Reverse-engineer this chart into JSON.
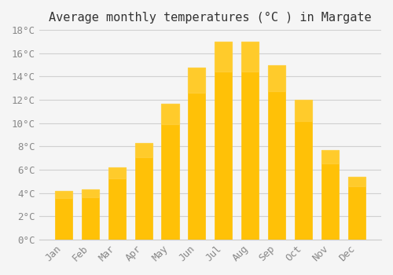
{
  "title": "Average monthly temperatures (°C ) in Margate",
  "months": [
    "Jan",
    "Feb",
    "Mar",
    "Apr",
    "May",
    "Jun",
    "Jul",
    "Aug",
    "Sep",
    "Oct",
    "Nov",
    "Dec"
  ],
  "values": [
    4.2,
    4.3,
    6.2,
    8.3,
    11.7,
    14.8,
    17.0,
    17.0,
    15.0,
    12.0,
    7.7,
    5.4
  ],
  "bar_color_top": "#FFC107",
  "bar_color_bottom": "#FFB300",
  "bar_edge_color": "#E6A800",
  "background_color": "#f5f5f5",
  "grid_color": "#d0d0d0",
  "ylim": [
    0,
    18
  ],
  "yticks": [
    0,
    2,
    4,
    6,
    8,
    10,
    12,
    14,
    16,
    18
  ],
  "ytick_labels": [
    "0°C",
    "2°C",
    "4°C",
    "6°C",
    "8°C",
    "10°C",
    "12°C",
    "14°C",
    "16°C",
    "18°C"
  ],
  "title_fontsize": 11,
  "tick_fontsize": 9,
  "tick_color": "#888888",
  "font_family": "monospace"
}
